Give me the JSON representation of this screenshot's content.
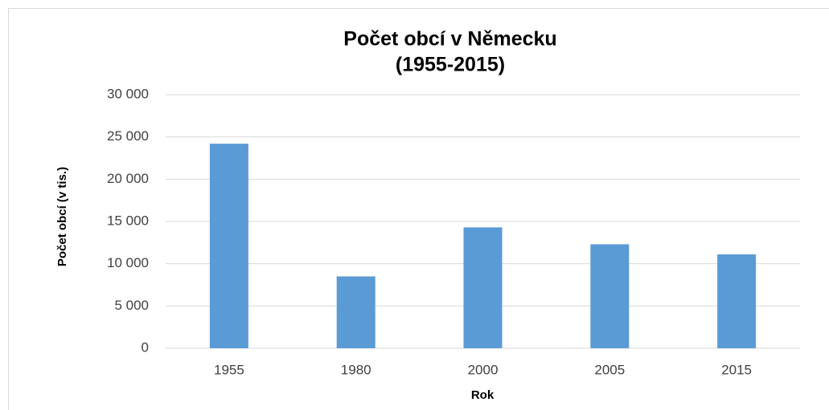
{
  "chart_data": {
    "type": "bar",
    "title": [
      "Počet obcí v Německu",
      "(1955-2015)"
    ],
    "x_label": "Rok",
    "y_label": "Počet obcí (v tis.)",
    "categories": [
      "1955",
      "1980",
      "2000",
      "2005",
      "2015"
    ],
    "values": [
      24200,
      8500,
      14300,
      12300,
      11100
    ],
    "color": "#5b9bd5",
    "ylim": [
      0,
      30000
    ],
    "yticks": [
      0,
      {
        "value": 5000,
        "label": "5 000"
      },
      {
        "value": 10000,
        "label": "10 000"
      },
      {
        "value": 15000,
        "label": "15 000"
      },
      {
        "value": 20000,
        "label": "20 000"
      },
      {
        "value": 25000,
        "label": "25 000"
      },
      {
        "value": 30000,
        "label": "30 000"
      }
    ],
    "grid": true
  }
}
